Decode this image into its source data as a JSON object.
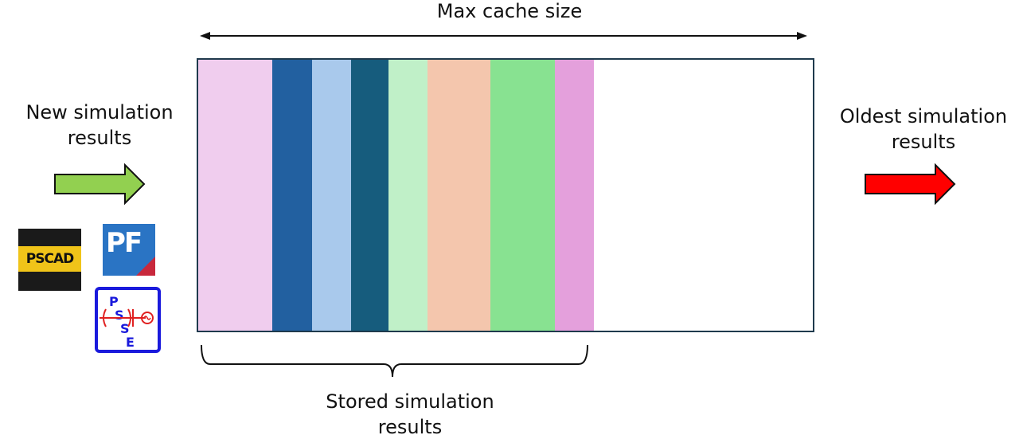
{
  "title": "Max cache size",
  "new_results": [
    "New simulation",
    "results"
  ],
  "oldest_results": [
    "Oldest simulation",
    "results"
  ],
  "stored_results": [
    "Stored simulation",
    "results"
  ],
  "cache": {
    "used_fraction": 0.64,
    "slots": [
      {
        "color": "#f0cdee",
        "share": 0.121
      },
      {
        "color": "#2260a0",
        "share": 0.064
      },
      {
        "color": "#a9c9ec",
        "share": 0.064
      },
      {
        "color": "#165c7d",
        "share": 0.061
      },
      {
        "color": "#c0f0c8",
        "share": 0.063
      },
      {
        "color": "#f4c6ad",
        "share": 0.103
      },
      {
        "color": "#88e291",
        "share": 0.105
      },
      {
        "color": "#e4a0dc",
        "share": 0.063
      }
    ]
  },
  "logos": {
    "pscad": "PSCAD",
    "powerfactory": "PF",
    "psse": [
      "P",
      "S",
      "S",
      "E"
    ]
  },
  "colors": {
    "incoming_arrow": "#92d050",
    "outgoing_arrow": "#ff0000",
    "border": "#1f3a4d"
  }
}
